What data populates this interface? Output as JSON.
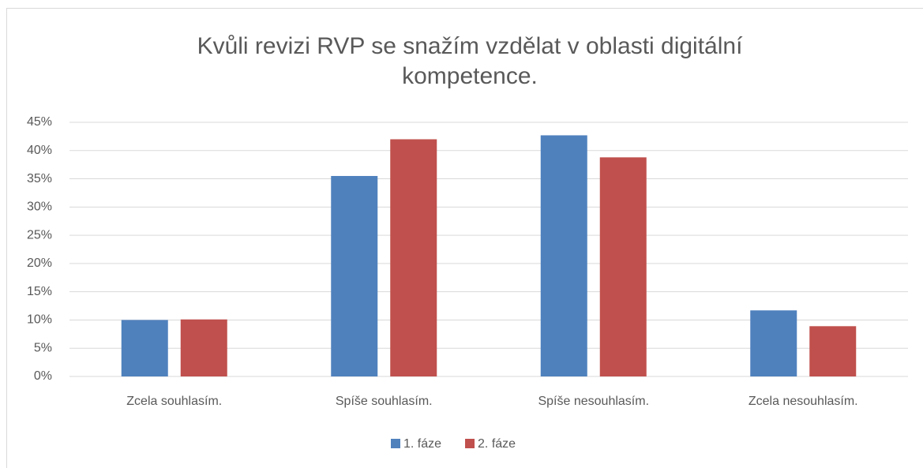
{
  "chart_data": {
    "type": "bar",
    "title": "Kvůli revizi RVP se snažím vzdělat v oblasti digitální kompetence.",
    "categories": [
      "Zcela souhlasím.",
      "Spíše souhlasím.",
      "Spíše nesouhlasím.",
      "Zcela nesouhlasím."
    ],
    "series": [
      {
        "name": "1. fáze",
        "color": "#4f81bd",
        "values": [
          10,
          35.5,
          42.7,
          11.7
        ]
      },
      {
        "name": "2. fáze",
        "color": "#c0504d",
        "values": [
          10.1,
          42,
          38.8,
          8.9
        ]
      }
    ],
    "ylim": [
      0,
      45
    ],
    "yticks": [
      {
        "value": 0,
        "label": "0%"
      },
      {
        "value": 5,
        "label": "5%"
      },
      {
        "value": 10,
        "label": "10%"
      },
      {
        "value": 15,
        "label": "15%"
      },
      {
        "value": 20,
        "label": "20%"
      },
      {
        "value": 25,
        "label": "25%"
      },
      {
        "value": 30,
        "label": "30%"
      },
      {
        "value": 35,
        "label": "35%"
      },
      {
        "value": 40,
        "label": "40%"
      },
      {
        "value": 45,
        "label": "45%"
      }
    ],
    "grid": true,
    "legend": "bottom"
  }
}
